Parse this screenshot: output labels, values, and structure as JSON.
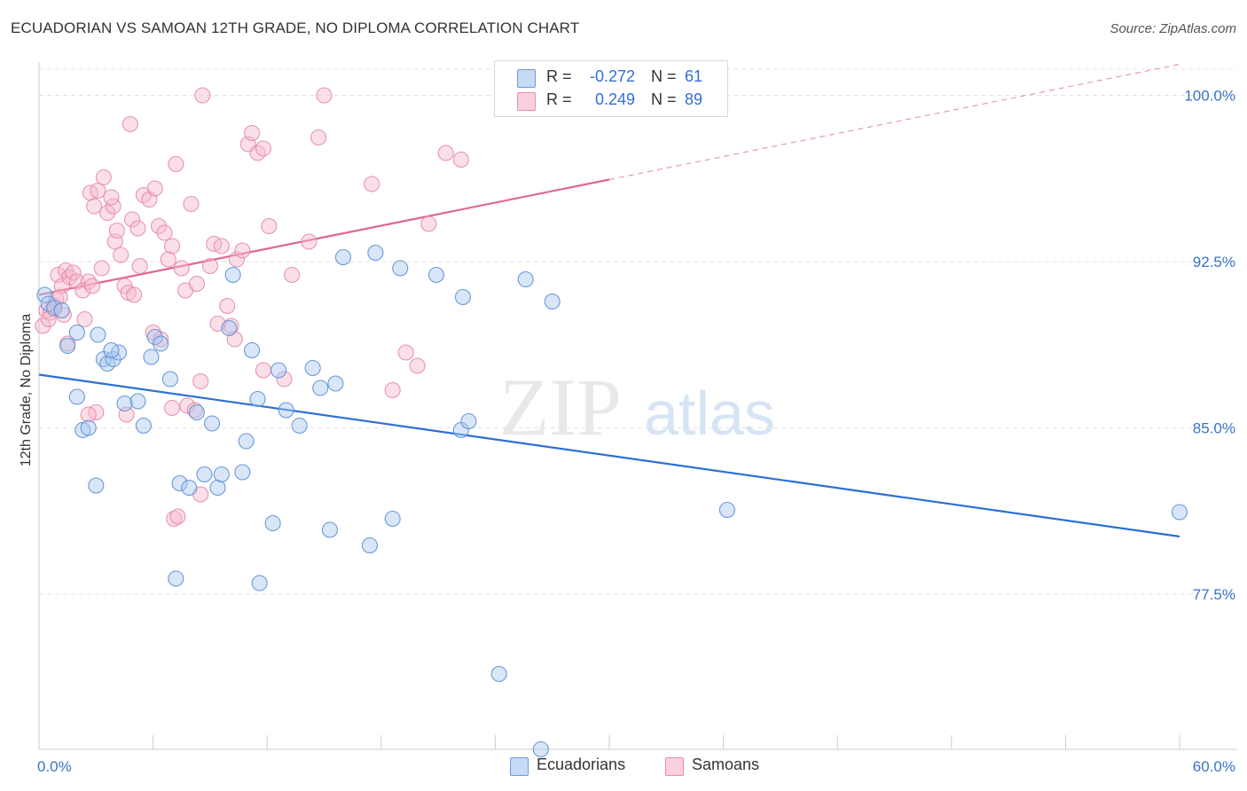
{
  "title": "ECUADORIAN VS SAMOAN 12TH GRADE, NO DIPLOMA CORRELATION CHART",
  "source": "Source: ZipAtlas.com",
  "watermark": {
    "zip": "ZIP",
    "atlas": "atlas"
  },
  "legend": {
    "rows": [
      {
        "r_label": "R =",
        "r_value": "-0.272",
        "n_label": "N =",
        "n_value": "61",
        "color": "#a8c8f0"
      },
      {
        "r_label": "R =",
        "r_value": "0.249",
        "n_label": "N =",
        "n_value": "89",
        "color": "#f7b8cc"
      }
    ]
  },
  "bottom_legend": {
    "items": [
      {
        "label": "Ecuadorians"
      },
      {
        "label": "Samoans"
      }
    ]
  },
  "colors": {
    "blue_fill": "#a8c8f0",
    "blue_stroke": "#5b8fd6",
    "blue_line": "#2b6fd6",
    "pink_fill": "#f7b8cc",
    "pink_stroke": "#e68aa6",
    "pink_line": "#e0668e",
    "tick_text": "#3a73c9",
    "grid": "#e3e3e3"
  },
  "chart_data": {
    "type": "scatter",
    "title": "ECUADORIAN VS SAMOAN 12TH GRADE, NO DIPLOMA CORRELATION CHART",
    "xlabel": "",
    "ylabel": "12th Grade, No Diploma",
    "xlim": [
      0,
      60
    ],
    "ylim": [
      70.5,
      101.5
    ],
    "x_tick_labels": [
      "0.0%",
      "60.0%"
    ],
    "y_ticks": [
      100.0,
      92.5,
      85.0,
      77.5
    ],
    "y_tick_labels": [
      "100.0%",
      "92.5%",
      "85.0%",
      "77.5%"
    ],
    "grid": true,
    "legend_position": "top-center",
    "series": [
      {
        "name": "Ecuadorians",
        "color": "#a8c8f0",
        "trend": {
          "x": [
            0,
            60
          ],
          "y": [
            87.4,
            80.1
          ],
          "dashed_from": null
        },
        "points": [
          [
            0.3,
            91.0
          ],
          [
            0.5,
            90.6
          ],
          [
            0.8,
            90.4
          ],
          [
            1.2,
            90.3
          ],
          [
            1.5,
            88.7
          ],
          [
            2.0,
            86.4
          ],
          [
            2.3,
            84.9
          ],
          [
            2.6,
            85.0
          ],
          [
            2.0,
            89.3
          ],
          [
            3.4,
            88.1
          ],
          [
            3.6,
            87.9
          ],
          [
            3.9,
            88.1
          ],
          [
            4.2,
            88.4
          ],
          [
            3.8,
            88.5
          ],
          [
            3.1,
            89.2
          ],
          [
            5.2,
            86.2
          ],
          [
            5.5,
            85.1
          ],
          [
            5.9,
            88.2
          ],
          [
            6.1,
            89.1
          ],
          [
            6.4,
            88.8
          ],
          [
            6.9,
            87.2
          ],
          [
            7.4,
            82.5
          ],
          [
            7.9,
            82.3
          ],
          [
            8.3,
            85.7
          ],
          [
            8.7,
            82.9
          ],
          [
            9.1,
            85.2
          ],
          [
            9.4,
            82.3
          ],
          [
            9.6,
            82.9
          ],
          [
            10.0,
            89.5
          ],
          [
            10.2,
            91.9
          ],
          [
            10.7,
            83.0
          ],
          [
            10.9,
            84.4
          ],
          [
            11.2,
            88.5
          ],
          [
            11.5,
            86.3
          ],
          [
            12.3,
            80.7
          ],
          [
            12.6,
            87.6
          ],
          [
            13.0,
            85.8
          ],
          [
            13.7,
            85.1
          ],
          [
            14.4,
            87.7
          ],
          [
            14.8,
            86.8
          ],
          [
            15.3,
            80.4
          ],
          [
            15.6,
            87.0
          ],
          [
            16.0,
            92.7
          ],
          [
            17.4,
            79.7
          ],
          [
            17.7,
            92.9
          ],
          [
            18.6,
            80.9
          ],
          [
            19.0,
            92.2
          ],
          [
            20.9,
            91.9
          ],
          [
            22.2,
            84.9
          ],
          [
            22.3,
            90.9
          ],
          [
            22.6,
            85.3
          ],
          [
            24.2,
            73.9
          ],
          [
            25.6,
            91.7
          ],
          [
            27.0,
            90.7
          ],
          [
            26.4,
            70.5
          ],
          [
            36.2,
            81.3
          ],
          [
            60.0,
            81.2
          ],
          [
            3.0,
            82.4
          ],
          [
            7.2,
            78.2
          ],
          [
            11.6,
            78.0
          ],
          [
            4.5,
            86.1
          ]
        ]
      },
      {
        "name": "Samoans",
        "color": "#f7b8cc",
        "trend": {
          "x": [
            0,
            30.0
          ],
          "y": [
            91.0,
            96.2
          ],
          "dashed_from": 30.0,
          "dashed_to": [
            60.0,
            101.4
          ]
        },
        "points": [
          [
            0.2,
            89.6
          ],
          [
            0.4,
            90.3
          ],
          [
            0.6,
            90.2
          ],
          [
            0.8,
            90.5
          ],
          [
            1.0,
            91.9
          ],
          [
            1.2,
            91.4
          ],
          [
            1.4,
            92.1
          ],
          [
            1.6,
            91.8
          ],
          [
            1.8,
            92.0
          ],
          [
            2.0,
            91.6
          ],
          [
            2.3,
            91.2
          ],
          [
            2.6,
            91.6
          ],
          [
            2.7,
            95.6
          ],
          [
            2.9,
            95.0
          ],
          [
            3.1,
            95.7
          ],
          [
            3.4,
            96.3
          ],
          [
            3.6,
            94.7
          ],
          [
            3.9,
            95.0
          ],
          [
            4.0,
            93.4
          ],
          [
            4.3,
            92.8
          ],
          [
            4.5,
            91.4
          ],
          [
            4.7,
            91.1
          ],
          [
            4.9,
            94.4
          ],
          [
            5.2,
            94.0
          ],
          [
            5.5,
            95.5
          ],
          [
            5.8,
            95.3
          ],
          [
            6.1,
            95.8
          ],
          [
            6.3,
            94.1
          ],
          [
            6.6,
            93.8
          ],
          [
            6.8,
            92.6
          ],
          [
            7.0,
            93.2
          ],
          [
            7.2,
            96.9
          ],
          [
            7.5,
            92.2
          ],
          [
            7.7,
            91.2
          ],
          [
            8.0,
            95.1
          ],
          [
            8.3,
            91.5
          ],
          [
            8.6,
            100.0
          ],
          [
            9.0,
            92.3
          ],
          [
            9.2,
            93.3
          ],
          [
            9.6,
            93.2
          ],
          [
            9.9,
            90.5
          ],
          [
            10.4,
            92.6
          ],
          [
            10.7,
            93.0
          ],
          [
            11.0,
            97.8
          ],
          [
            11.2,
            98.3
          ],
          [
            11.5,
            97.4
          ],
          [
            11.8,
            97.6
          ],
          [
            12.1,
            94.1
          ],
          [
            12.9,
            87.2
          ],
          [
            13.3,
            91.9
          ],
          [
            14.2,
            93.4
          ],
          [
            14.7,
            98.1
          ],
          [
            15.0,
            100.0
          ],
          [
            17.5,
            96.0
          ],
          [
            18.6,
            86.7
          ],
          [
            19.3,
            88.4
          ],
          [
            19.9,
            87.8
          ],
          [
            20.5,
            94.2
          ],
          [
            21.4,
            97.4
          ],
          [
            22.2,
            97.1
          ],
          [
            6.4,
            89.0
          ],
          [
            7.0,
            85.9
          ],
          [
            7.8,
            86.0
          ],
          [
            8.2,
            85.8
          ],
          [
            8.5,
            82.0
          ],
          [
            7.1,
            80.9
          ],
          [
            7.3,
            81.0
          ],
          [
            3.0,
            85.7
          ],
          [
            2.6,
            85.6
          ],
          [
            4.6,
            85.6
          ],
          [
            8.5,
            87.1
          ],
          [
            10.1,
            89.6
          ],
          [
            1.3,
            90.1
          ],
          [
            0.9,
            90.8
          ],
          [
            3.8,
            95.4
          ],
          [
            4.8,
            98.7
          ],
          [
            1.1,
            90.9
          ],
          [
            2.4,
            89.9
          ],
          [
            5.3,
            92.3
          ],
          [
            5.0,
            91.0
          ],
          [
            6.0,
            89.3
          ],
          [
            0.5,
            89.9
          ],
          [
            1.5,
            88.8
          ],
          [
            2.8,
            91.4
          ],
          [
            3.3,
            92.2
          ],
          [
            4.1,
            93.9
          ],
          [
            9.4,
            89.7
          ],
          [
            10.3,
            89.0
          ],
          [
            11.8,
            87.6
          ]
        ]
      }
    ]
  }
}
